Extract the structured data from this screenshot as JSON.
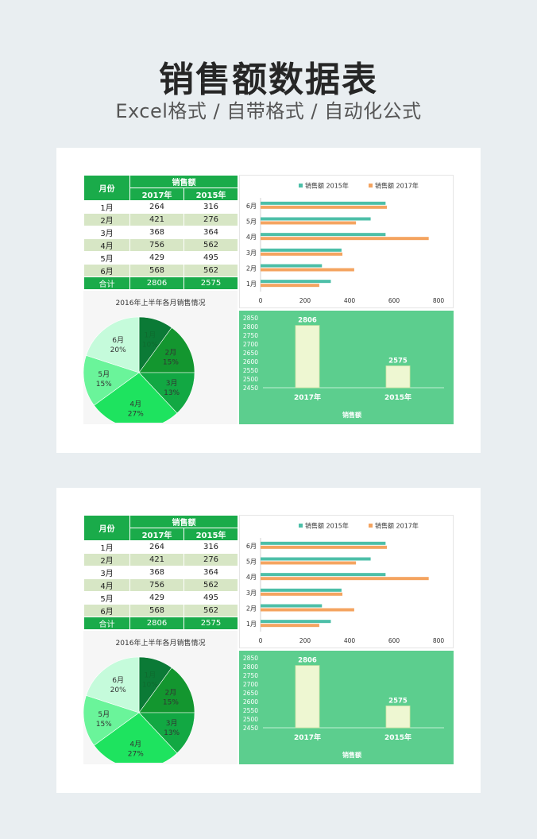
{
  "header": {
    "title": "销售额数据表",
    "subtitle": "Excel格式 / 自带格式 / 自动化公式"
  },
  "table": {
    "month_header": "月份",
    "sales_header": "销售额",
    "year_headers": [
      "2017年",
      "2015年"
    ],
    "rows": [
      {
        "month": "1月",
        "y2017": "264",
        "y2015": "316"
      },
      {
        "month": "2月",
        "y2017": "421",
        "y2015": "276"
      },
      {
        "month": "3月",
        "y2017": "368",
        "y2015": "364"
      },
      {
        "month": "4月",
        "y2017": "756",
        "y2015": "562"
      },
      {
        "month": "5月",
        "y2017": "429",
        "y2015": "495"
      },
      {
        "month": "6月",
        "y2017": "568",
        "y2015": "562"
      }
    ],
    "total": {
      "label": "合计",
      "y2017": "2806",
      "y2015": "2575"
    }
  },
  "colors": {
    "table_green": "#1aab4a",
    "tint_row": "#d7e6c5",
    "teal_series": "#4dbfa8",
    "orange_series": "#f4a460",
    "column_panel": "#5cce8e"
  },
  "chart_data": [
    {
      "type": "pie",
      "title": "2016年上半年各月销售情况",
      "categories": [
        "1月",
        "2月",
        "3月",
        "4月",
        "5月",
        "6月"
      ],
      "values": [
        10,
        15,
        13,
        27,
        15,
        20
      ],
      "labels": [
        "10%",
        "15%",
        "13%",
        "27%",
        "15%",
        "20%"
      ],
      "colors": [
        "#0b7a36",
        "#13962f",
        "#12a843",
        "#1ee35f",
        "#6af49a",
        "#c5fbdb"
      ]
    },
    {
      "type": "bar",
      "orientation": "horizontal",
      "categories": [
        "1月",
        "2月",
        "3月",
        "4月",
        "5月",
        "6月"
      ],
      "series": [
        {
          "name": "销售额 2015年",
          "values": [
            316,
            276,
            364,
            562,
            495,
            562
          ],
          "color": "#4dbfa8"
        },
        {
          "name": "销售额 2017年",
          "values": [
            264,
            421,
            368,
            756,
            429,
            568
          ],
          "color": "#f4a460"
        }
      ],
      "xlim": [
        0,
        800
      ],
      "xticks": [
        "0",
        "200",
        "400",
        "600",
        "800"
      ],
      "legend": "top"
    },
    {
      "type": "bar",
      "categories": [
        "2017年",
        "2015年"
      ],
      "values": [
        2806,
        2575
      ],
      "xlabel": "销售额",
      "ylim": [
        2450,
        2850
      ],
      "yticks": [
        "2850",
        "2800",
        "2750",
        "2700",
        "2650",
        "2600",
        "2550",
        "2500",
        "2450"
      ]
    }
  ]
}
